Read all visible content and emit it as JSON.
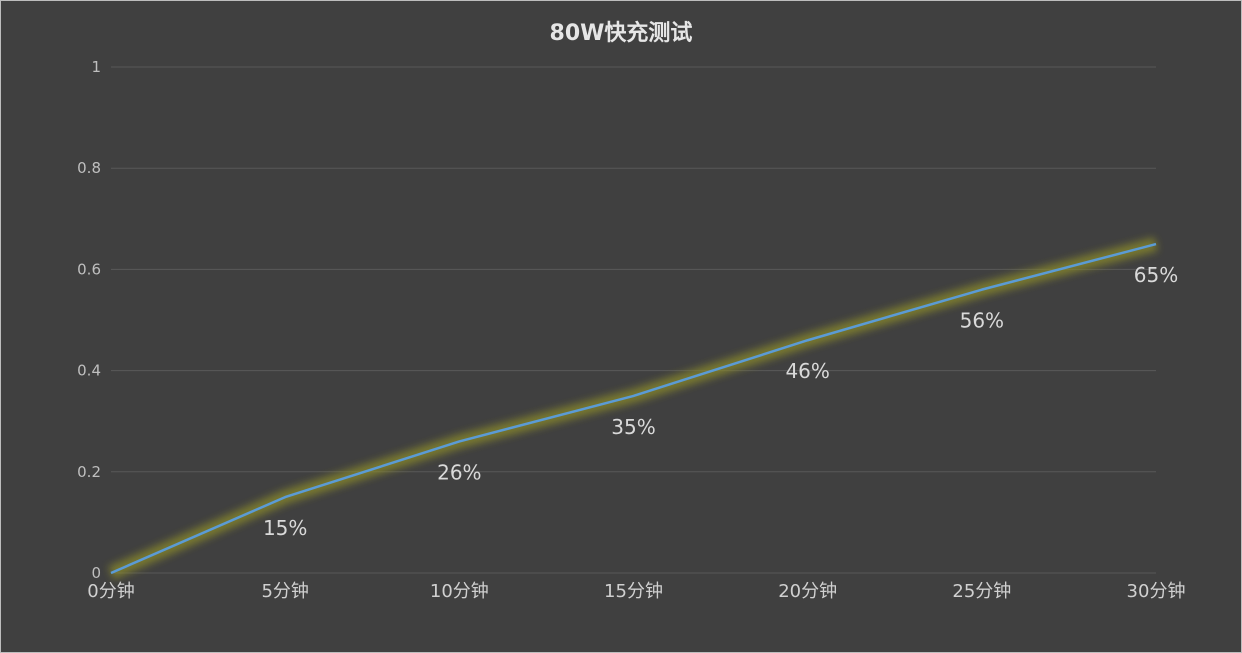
{
  "chart_data": {
    "type": "line",
    "title": "80W快充测试",
    "categories": [
      "0分钟",
      "5分钟",
      "10分钟",
      "15分钟",
      "20分钟",
      "25分钟",
      "30分钟"
    ],
    "series": [
      {
        "values": [
          0,
          0.15,
          0.26,
          0.35,
          0.46,
          0.56,
          0.65
        ],
        "data_labels": [
          "",
          "15%",
          "26%",
          "35%",
          "46%",
          "56%",
          "65%"
        ]
      }
    ],
    "ylim": [
      0,
      1
    ],
    "yticks": [
      0,
      0.2,
      0.4,
      0.6,
      0.8,
      1
    ],
    "ytick_labels": [
      "0",
      "0.2",
      "0.4",
      "0.6",
      "0.8",
      "1"
    ],
    "grid": true,
    "legend": "none",
    "colors": {
      "background": "#404040",
      "line": "#5b9bd5",
      "glow": "#8a8a2a",
      "grid": "#595959"
    }
  }
}
